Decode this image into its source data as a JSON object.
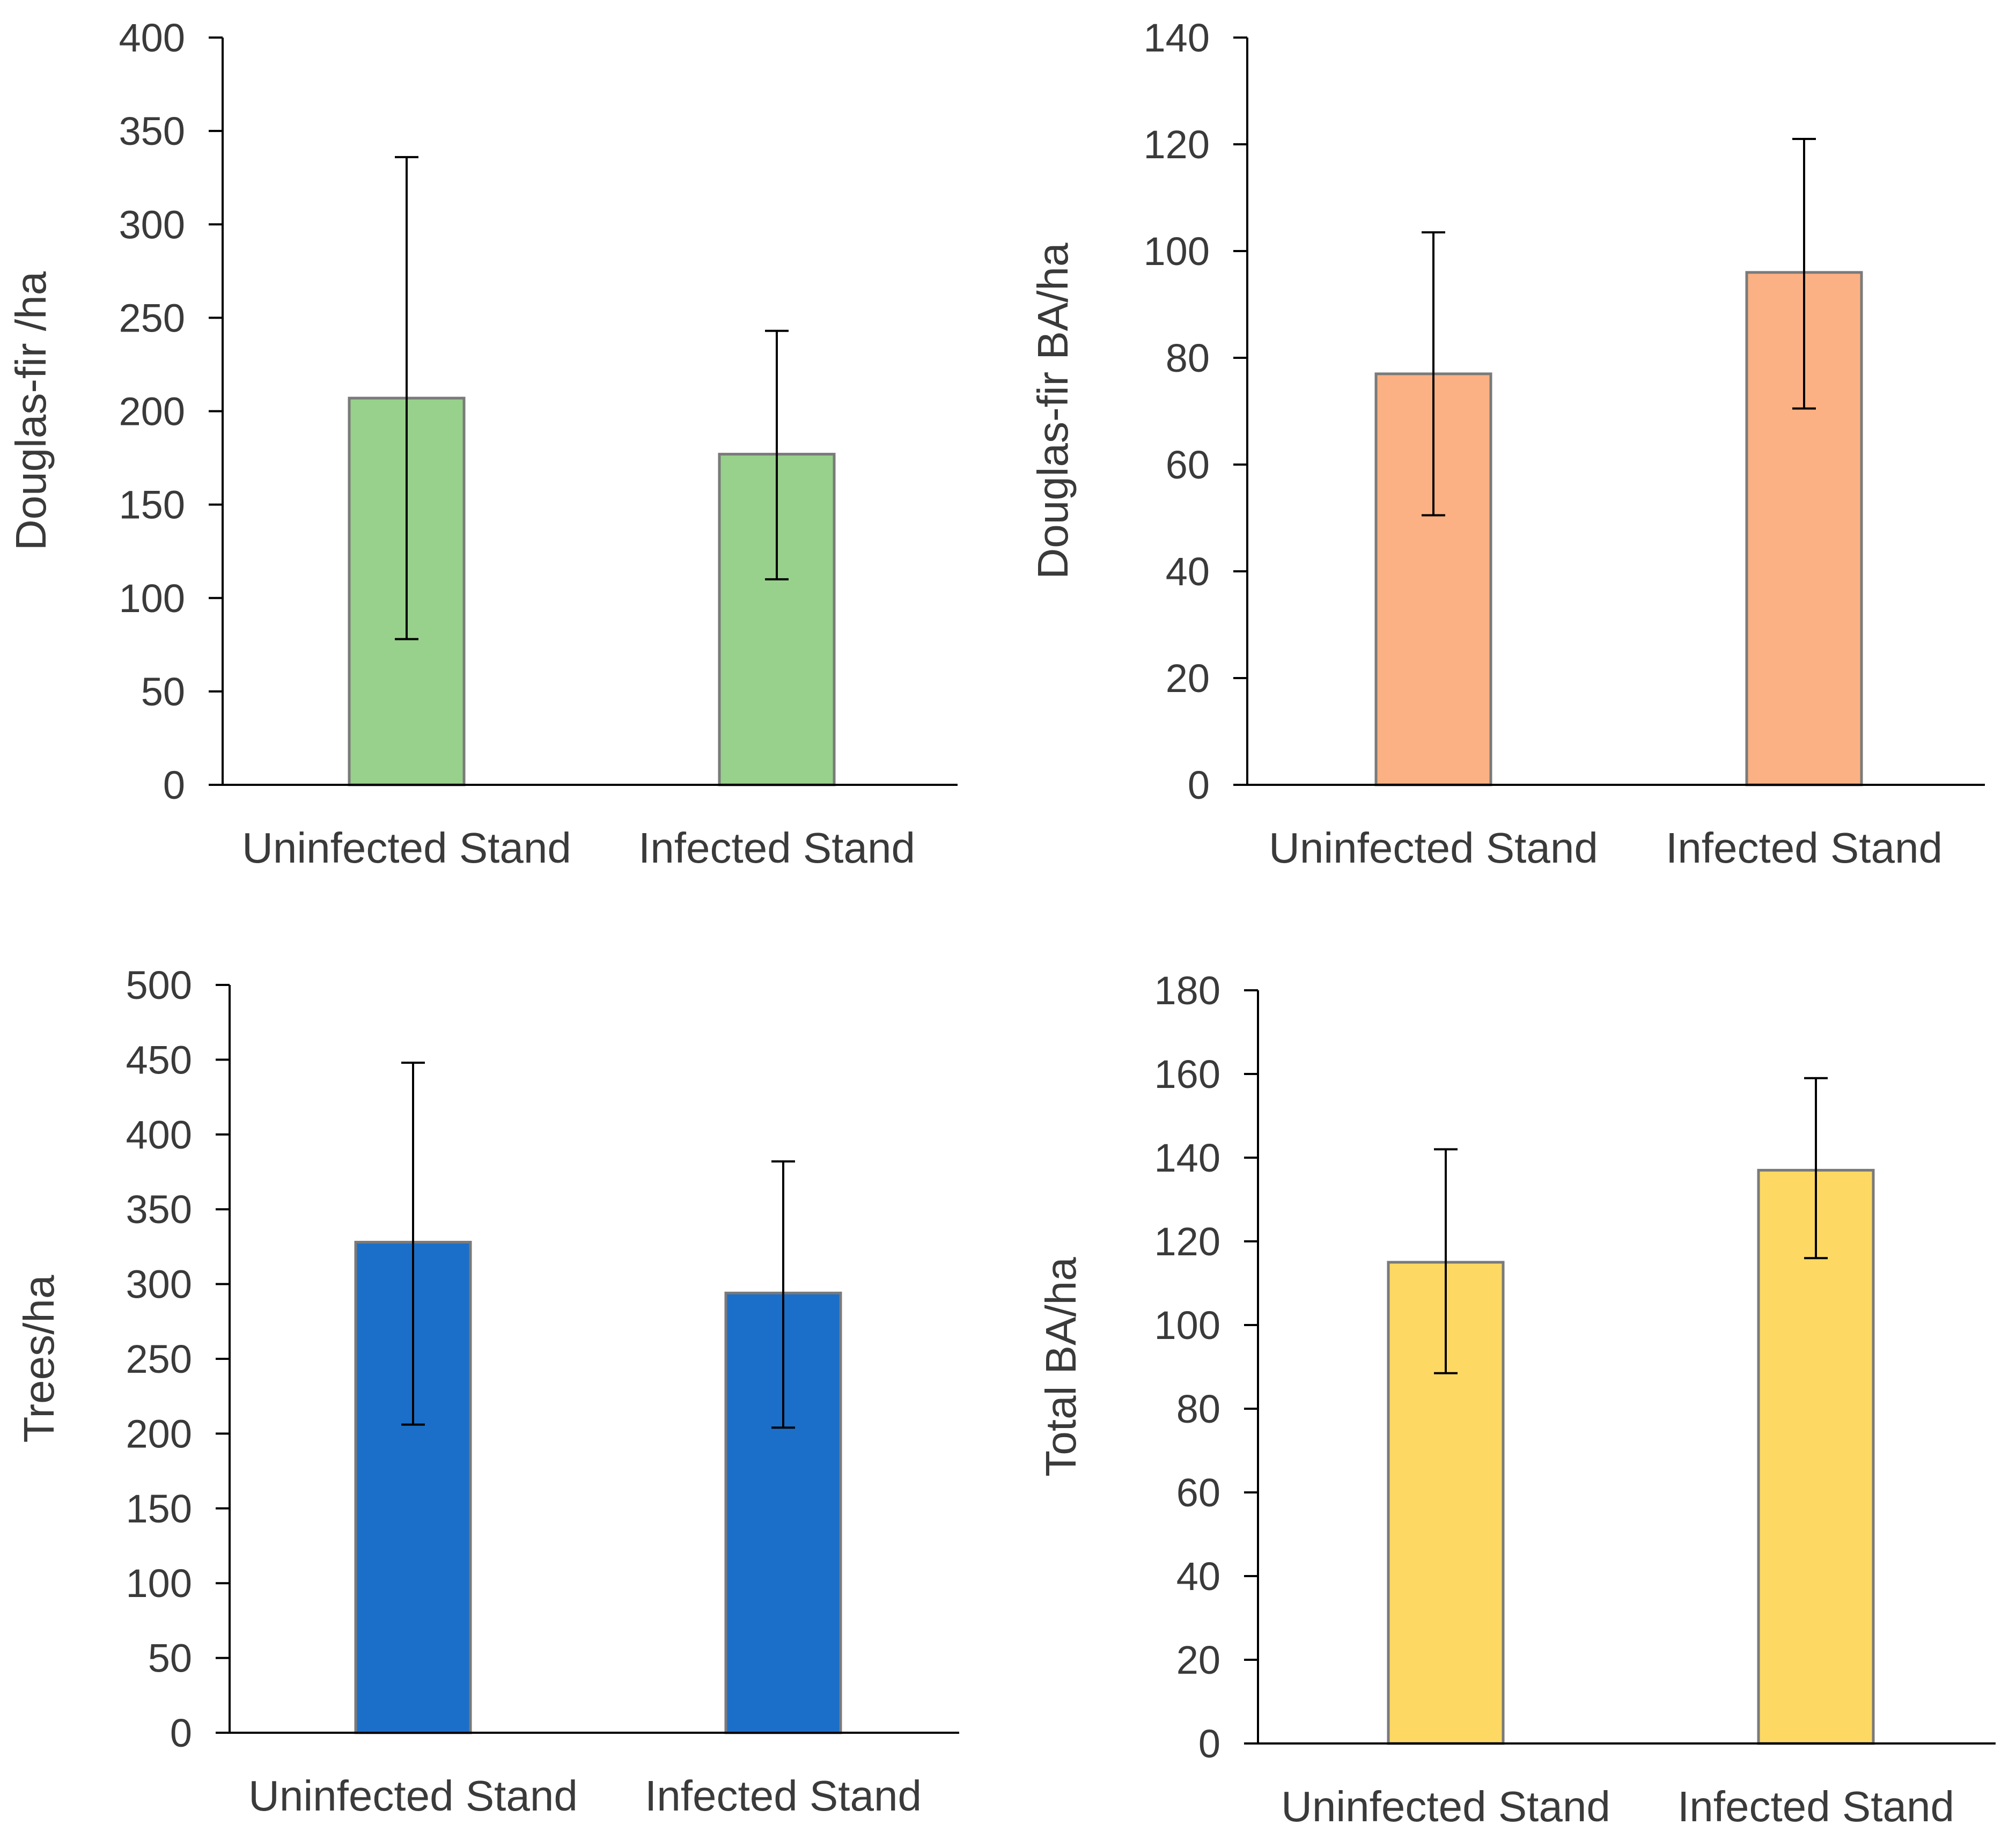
{
  "chart_data": [
    {
      "id": "douglas-fir-density",
      "type": "bar",
      "categories": [
        "Uninfected Stand",
        "Infected Stand"
      ],
      "values": [
        207,
        177
      ],
      "error_low": [
        78,
        110
      ],
      "error_high": [
        336,
        243
      ],
      "ylabel": "Douglas-fir /ha",
      "xlabel": "",
      "ylim": [
        0,
        400
      ],
      "yticks": [
        "0",
        "50",
        "100",
        "150",
        "200",
        "250",
        "300",
        "350",
        "400"
      ],
      "color": "#98D18B"
    },
    {
      "id": "douglas-fir-basal-area",
      "type": "bar",
      "categories": [
        "Uninfected Stand",
        "Infected Stand"
      ],
      "values": [
        77,
        96
      ],
      "error_low": [
        50.5,
        70.5
      ],
      "error_high": [
        103.5,
        121
      ],
      "ylabel": "Douglas-fir BA/ha",
      "xlabel": "",
      "ylim": [
        0,
        140
      ],
      "yticks": [
        "0",
        "20",
        "40",
        "60",
        "80",
        "100",
        "120",
        "140"
      ],
      "color": "#FBB183"
    },
    {
      "id": "tree-density",
      "type": "bar",
      "categories": [
        "Uninfected Stand",
        "Infected Stand"
      ],
      "values": [
        328,
        294
      ],
      "error_low": [
        206,
        204
      ],
      "error_high": [
        448,
        382
      ],
      "ylabel": "Trees/ha",
      "xlabel": "",
      "ylim": [
        0,
        500
      ],
      "yticks": [
        "0",
        "50",
        "100",
        "150",
        "200",
        "250",
        "300",
        "350",
        "400",
        "450",
        "500"
      ],
      "color": "#1B6FC8"
    },
    {
      "id": "total-basal-area",
      "type": "bar",
      "categories": [
        "Uninfected Stand",
        "Infected Stand"
      ],
      "values": [
        115,
        137
      ],
      "error_low": [
        88.5,
        116
      ],
      "error_high": [
        142,
        159
      ],
      "ylabel": "Total BA/ha",
      "xlabel": "",
      "ylim": [
        0,
        180
      ],
      "yticks": [
        "0",
        "20",
        "40",
        "60",
        "80",
        "100",
        "120",
        "140",
        "160",
        "180"
      ],
      "color": "#FDD964"
    }
  ]
}
